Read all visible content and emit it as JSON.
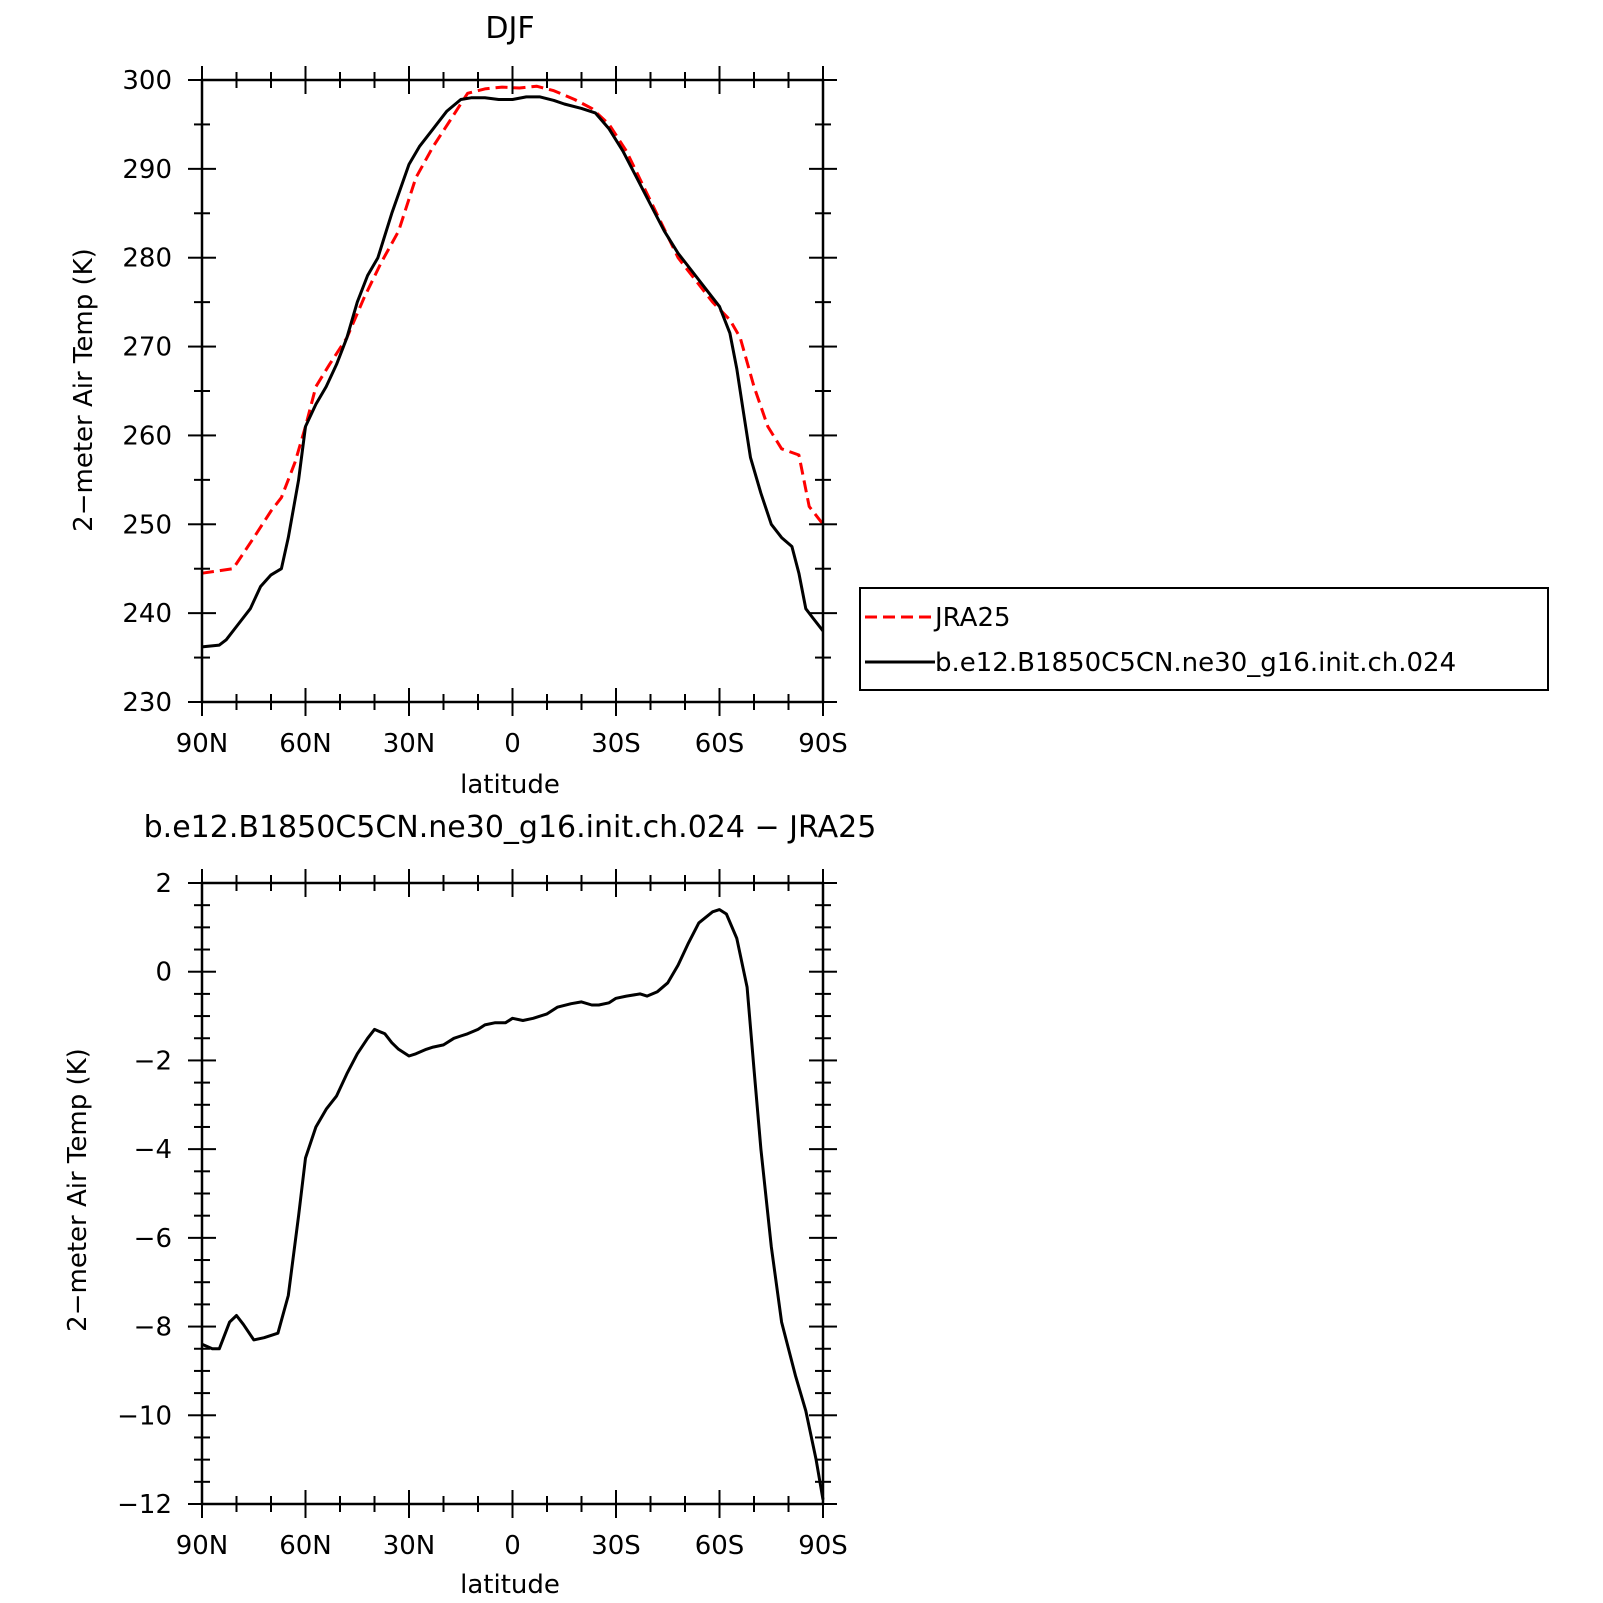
{
  "colors": {
    "jra25": "#ff0000",
    "model": "#000000",
    "axes": "#000000",
    "background": "#ffffff"
  },
  "chart_data": [
    {
      "type": "line",
      "title": "DJF",
      "xlabel": "latitude",
      "ylabel": "2−meter Air Temp (K)",
      "xlim": [
        90,
        -90
      ],
      "ylim": [
        230,
        300
      ],
      "xticks": [
        {
          "value": 90,
          "label": "90N"
        },
        {
          "value": 60,
          "label": "60N"
        },
        {
          "value": 30,
          "label": "30N"
        },
        {
          "value": 0,
          "label": "0"
        },
        {
          "value": -30,
          "label": "30S"
        },
        {
          "value": -60,
          "label": "60S"
        },
        {
          "value": -90,
          "label": "90S"
        }
      ],
      "yticks": [
        {
          "value": 300,
          "label": "300"
        },
        {
          "value": 290,
          "label": "290"
        },
        {
          "value": 280,
          "label": "280"
        },
        {
          "value": 270,
          "label": "270"
        },
        {
          "value": 260,
          "label": "260"
        },
        {
          "value": 250,
          "label": "250"
        },
        {
          "value": 240,
          "label": "240"
        },
        {
          "value": 230,
          "label": "230"
        }
      ],
      "grid": false,
      "legend_position": "right, outside plot",
      "series": [
        {
          "name": "JRA25",
          "color": "#ff0000",
          "dash": "dashed",
          "x": [
            90,
            81,
            75,
            70,
            67,
            63,
            60,
            57,
            53,
            48,
            43,
            38,
            33,
            28,
            23,
            18,
            13,
            8,
            3,
            -2,
            -7,
            -12,
            -18,
            -23,
            -28,
            -33,
            -38,
            -43,
            -48,
            -53,
            -58,
            -63,
            -66,
            -70,
            -74,
            -78,
            -83,
            -86,
            -90
          ],
          "values": [
            244.5,
            245.0,
            248.5,
            251.5,
            253.0,
            257.0,
            261.0,
            265.5,
            268.0,
            271.0,
            275.5,
            279.5,
            283.0,
            289.0,
            292.5,
            295.5,
            298.5,
            299.0,
            299.2,
            299.1,
            299.3,
            298.8,
            297.8,
            296.8,
            295.0,
            292.0,
            288.0,
            284.0,
            280.0,
            277.5,
            275.0,
            273.0,
            271.0,
            265.5,
            261.0,
            258.5,
            257.8,
            252.0,
            250.0
          ]
        },
        {
          "name": "b.e12.B1850C5CN.ne30_g16.init.ch.024",
          "color": "#000000",
          "dash": "solid",
          "x": [
            90,
            85,
            83,
            80,
            76,
            73,
            70,
            67,
            65,
            62,
            60,
            57,
            54,
            51,
            48,
            45,
            42,
            39,
            35,
            30,
            27,
            23,
            19,
            15,
            12,
            8,
            4,
            0,
            -4,
            -8,
            -12,
            -15,
            -20,
            -24,
            -28,
            -32,
            -36,
            -40,
            -44,
            -48,
            -52,
            -56,
            -60,
            -63,
            -65,
            -67,
            -69,
            -72,
            -75,
            -78,
            -81,
            -83,
            -85,
            -87,
            -90
          ],
          "values": [
            236.2,
            236.4,
            237.0,
            238.5,
            240.5,
            243.0,
            244.3,
            245.0,
            248.5,
            255.0,
            261.0,
            263.5,
            265.5,
            268.0,
            271.0,
            275.0,
            278.0,
            280.0,
            285.0,
            290.5,
            292.5,
            294.5,
            296.5,
            297.8,
            298.0,
            298.0,
            297.8,
            297.8,
            298.1,
            298.1,
            297.7,
            297.3,
            296.8,
            296.3,
            294.5,
            292.0,
            289.0,
            286.0,
            283.0,
            280.5,
            278.5,
            276.5,
            274.5,
            271.5,
            267.5,
            262.5,
            257.5,
            253.5,
            250.0,
            248.5,
            247.5,
            244.5,
            240.5,
            239.5,
            238.0
          ]
        }
      ]
    },
    {
      "type": "line",
      "title": "b.e12.B1850C5CN.ne30_g16.init.ch.024 − JRA25",
      "xlabel": "latitude",
      "ylabel": "2−meter Air Temp (K)",
      "xlim": [
        90,
        -90
      ],
      "ylim": [
        -12,
        2
      ],
      "xticks": [
        {
          "value": 90,
          "label": "90N"
        },
        {
          "value": 60,
          "label": "60N"
        },
        {
          "value": 30,
          "label": "30N"
        },
        {
          "value": 0,
          "label": "0"
        },
        {
          "value": -30,
          "label": "30S"
        },
        {
          "value": -60,
          "label": "60S"
        },
        {
          "value": -90,
          "label": "90S"
        }
      ],
      "yticks": [
        {
          "value": 2,
          "label": "2"
        },
        {
          "value": 0,
          "label": "0"
        },
        {
          "value": -2,
          "label": "−2"
        },
        {
          "value": -4,
          "label": "−4"
        },
        {
          "value": -6,
          "label": "−6"
        },
        {
          "value": -8,
          "label": "−8"
        },
        {
          "value": -10,
          "label": "−10"
        },
        {
          "value": -12,
          "label": "−12"
        }
      ],
      "grid": false,
      "series": [
        {
          "color": "#000000",
          "dash": "solid",
          "x": [
            90,
            87,
            85,
            82,
            80,
            78,
            75,
            72,
            70,
            68,
            65,
            62,
            60,
            57,
            54,
            51,
            48,
            45,
            42,
            40,
            37,
            35,
            33,
            30,
            28,
            25,
            23,
            20,
            17,
            15,
            13,
            10,
            8,
            5,
            2,
            0,
            -3,
            -6,
            -10,
            -13,
            -17,
            -20,
            -23,
            -25,
            -28,
            -30,
            -33,
            -37,
            -39,
            -42,
            -45,
            -48,
            -51,
            -54,
            -58,
            -60,
            -62,
            -65,
            -68,
            -70,
            -72,
            -75,
            -78,
            -82,
            -85,
            -88,
            -90
          ],
          "values": [
            -8.4,
            -8.5,
            -8.5,
            -7.9,
            -7.75,
            -7.95,
            -8.3,
            -8.25,
            -8.2,
            -8.15,
            -7.3,
            -5.5,
            -4.2,
            -3.5,
            -3.1,
            -2.8,
            -2.3,
            -1.85,
            -1.5,
            -1.3,
            -1.4,
            -1.6,
            -1.75,
            -1.9,
            -1.85,
            -1.75,
            -1.7,
            -1.65,
            -1.5,
            -1.45,
            -1.4,
            -1.3,
            -1.2,
            -1.15,
            -1.15,
            -1.05,
            -1.1,
            -1.05,
            -0.95,
            -0.8,
            -0.72,
            -0.68,
            -0.75,
            -0.75,
            -0.7,
            -0.6,
            -0.55,
            -0.5,
            -0.55,
            -0.45,
            -0.25,
            0.15,
            0.65,
            1.1,
            1.35,
            1.4,
            1.3,
            0.75,
            -0.35,
            -2.2,
            -4.0,
            -6.2,
            -7.9,
            -9.1,
            -9.9,
            -11.0,
            -11.9
          ]
        }
      ]
    }
  ],
  "legend": {
    "entries": [
      {
        "label": "JRA25",
        "color": "#ff0000",
        "dash": "dashed"
      },
      {
        "label": "b.e12.B1850C5CN.ne30_g16.init.ch.024",
        "color": "#000000",
        "dash": "solid"
      }
    ]
  }
}
